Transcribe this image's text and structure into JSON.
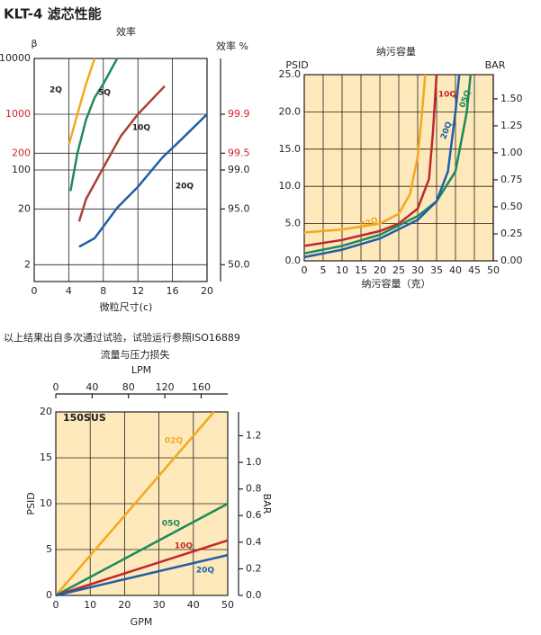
{
  "header": "KLT-4 滤芯性能",
  "note": "以上结果出自多次通过试验，试验运行参照ISO16889",
  "chart_data": [
    {
      "type": "line",
      "title": "效率",
      "ylabel": "β",
      "y2label": "效率 %",
      "xlabel": "微粒尺寸(c)",
      "xlim": [
        0,
        20
      ],
      "xticks": [
        0,
        4,
        8,
        12,
        16,
        20
      ],
      "ylog": true,
      "ylim": [
        1,
        10000
      ],
      "yticks": [
        2,
        20,
        100,
        {
          "value": 200,
          "label": "200",
          "color": "#d2232a"
        },
        {
          "value": 1000,
          "label": "1000",
          "color": "#d2232a"
        },
        10000
      ],
      "y2scale": "efficiency",
      "y2lim": [
        0,
        99.99
      ],
      "y2ticks": [
        {
          "value": 50,
          "label": "50.0"
        },
        {
          "value": 95,
          "label": "95.0"
        },
        {
          "value": 99,
          "label": "99.0"
        },
        {
          "value": 99.5,
          "label": "99.5",
          "color": "#d2232a"
        },
        {
          "value": 99.9,
          "label": "99.9",
          "color": "#d2232a"
        }
      ],
      "grid": true,
      "background": "#ffffff",
      "series": [
        {
          "name": "2Q",
          "color": "#f5a81c",
          "x": [
            4,
            5,
            6,
            7
          ],
          "values": [
            280,
            1000,
            3500,
            10000
          ]
        },
        {
          "name": "5Q",
          "color": "#1e8a5a",
          "x": [
            4.2,
            5,
            6,
            7,
            8,
            9.6
          ],
          "values": [
            42,
            200,
            800,
            2000,
            3500,
            10000
          ]
        },
        {
          "name": "10Q",
          "color": "#a8413a",
          "x": [
            5.2,
            6,
            8,
            10,
            12,
            15.1
          ],
          "values": [
            12,
            30,
            110,
            400,
            1000,
            3200
          ]
        },
        {
          "name": "20Q",
          "color": "#1f5fa6",
          "x": [
            5.2,
            7,
            9.6,
            12,
            14.8,
            17,
            20
          ],
          "values": [
            4.2,
            6,
            21,
            50,
            165,
            350,
            1000
          ]
        }
      ]
    },
    {
      "type": "line",
      "title": "纳污容量",
      "ylabel": "PSID",
      "y2label": "BAR",
      "xlabel": "纳污容量（克）",
      "xlim": [
        0,
        50
      ],
      "xticks": [
        0,
        5,
        10,
        15,
        20,
        25,
        30,
        35,
        40,
        45,
        50
      ],
      "ylim": [
        0,
        25
      ],
      "yticks": [
        {
          "value": 0,
          "label": "0.0"
        },
        {
          "value": 5,
          "label": "5.0"
        },
        {
          "value": 10,
          "label": "10.0"
        },
        {
          "value": 15,
          "label": "15.0"
        },
        {
          "value": 20,
          "label": "20.0"
        },
        {
          "value": 25,
          "label": "25.0"
        }
      ],
      "y2lim": [
        0,
        1.724
      ],
      "y2ticks": [
        {
          "value": 0,
          "label": "0.00"
        },
        0.25,
        {
          "value": 0.5,
          "label": "0.50"
        },
        0.75,
        {
          "value": 1,
          "label": "1.00"
        },
        1.25,
        {
          "value": 1.5,
          "label": "1.50"
        }
      ],
      "grid": true,
      "background": "#fde9bb",
      "series": [
        {
          "name": "02Q",
          "color": "#f5a81c",
          "x": [
            0,
            10,
            20,
            25,
            28,
            30,
            31,
            32
          ],
          "values": [
            3.8,
            4.2,
            5,
            6.3,
            9,
            14,
            19,
            25
          ]
        },
        {
          "name": "10Q",
          "color": "#c1272d",
          "x": [
            0,
            10,
            20,
            25,
            30,
            33,
            34,
            35
          ],
          "values": [
            2,
            2.8,
            4,
            5,
            7,
            11,
            17,
            25
          ]
        },
        {
          "name": "05Q",
          "color": "#1e8a5a",
          "x": [
            0,
            10,
            20,
            30,
            35,
            40,
            43,
            44
          ],
          "values": [
            1,
            2,
            3.5,
            6,
            8,
            12,
            20,
            25
          ]
        },
        {
          "name": "20Q",
          "color": "#1f5fa6",
          "x": [
            0,
            10,
            20,
            30,
            35,
            38,
            40,
            41
          ],
          "values": [
            0.5,
            1.5,
            3,
            5.5,
            8,
            12,
            20,
            25
          ]
        }
      ]
    },
    {
      "type": "line",
      "title": "流量与压力损失",
      "annotation": "150SUS",
      "ylabel": "PSID",
      "y2label": "BAR",
      "xlabel": "GPM",
      "x2label": "LPM",
      "xlim": [
        0,
        50
      ],
      "xticks": [
        0,
        10,
        20,
        30,
        40,
        50
      ],
      "x2lim": [
        0,
        189.27
      ],
      "x2ticks": [
        0,
        40,
        80,
        120,
        160
      ],
      "ylim": [
        0,
        20
      ],
      "yticks": [
        0,
        5,
        10,
        15,
        20
      ],
      "y2lim": [
        0,
        1.379
      ],
      "y2ticks": [
        {
          "value": 0,
          "label": "0.0"
        },
        0.2,
        0.4,
        0.6,
        0.8,
        {
          "value": 1,
          "label": "1.0"
        },
        1.2
      ],
      "grid": true,
      "background": "#fde9bb",
      "series": [
        {
          "name": "02Q",
          "color": "#f5a81c",
          "x": [
            0,
            46
          ],
          "values": [
            0,
            20
          ]
        },
        {
          "name": "05Q",
          "color": "#1e8a5a",
          "x": [
            0,
            50
          ],
          "values": [
            0,
            10
          ]
        },
        {
          "name": "10Q",
          "color": "#c1272d",
          "x": [
            0,
            50
          ],
          "values": [
            0,
            6
          ]
        },
        {
          "name": "20Q",
          "color": "#1f5fa6",
          "x": [
            0,
            50
          ],
          "values": [
            0,
            4.4
          ]
        }
      ]
    }
  ]
}
